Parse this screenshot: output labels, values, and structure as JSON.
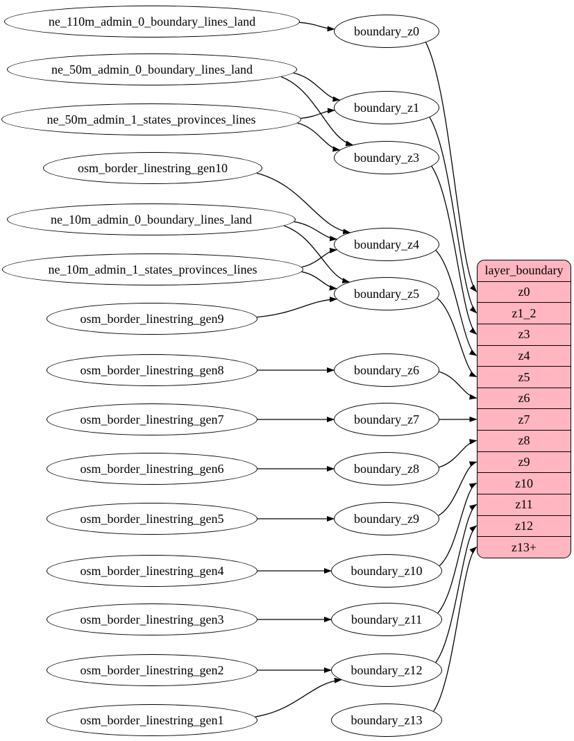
{
  "colors": {
    "background": "#ffffff",
    "node_fill": "#ffffff",
    "stroke": "#000000",
    "table_fill": "#ffb6c1"
  },
  "sources": [
    "ne_110m_admin_0_boundary_lines_land",
    "ne_50m_admin_0_boundary_lines_land",
    "ne_50m_admin_1_states_provinces_lines",
    "osm_border_linestring_gen10",
    "ne_10m_admin_0_boundary_lines_land",
    "ne_10m_admin_1_states_provinces_lines",
    "osm_border_linestring_gen9",
    "osm_border_linestring_gen8",
    "osm_border_linestring_gen7",
    "osm_border_linestring_gen6",
    "osm_border_linestring_gen5",
    "osm_border_linestring_gen4",
    "osm_border_linestring_gen3",
    "osm_border_linestring_gen2",
    "osm_border_linestring_gen1"
  ],
  "stages": [
    "boundary_z0",
    "boundary_z1",
    "boundary_z3",
    "boundary_z4",
    "boundary_z5",
    "boundary_z6",
    "boundary_z7",
    "boundary_z8",
    "boundary_z9",
    "boundary_z10",
    "boundary_z11",
    "boundary_z12",
    "boundary_z13"
  ],
  "table": {
    "title": "layer_boundary",
    "rows": [
      "z0",
      "z1_2",
      "z3",
      "z4",
      "z5",
      "z6",
      "z7",
      "z8",
      "z9",
      "z10",
      "z11",
      "z12",
      "z13+"
    ]
  },
  "edges": [
    [
      "ne_110m_admin_0_boundary_lines_land",
      "boundary_z0"
    ],
    [
      "ne_50m_admin_0_boundary_lines_land",
      "boundary_z1"
    ],
    [
      "ne_50m_admin_0_boundary_lines_land",
      "boundary_z3"
    ],
    [
      "ne_50m_admin_1_states_provinces_lines",
      "boundary_z1"
    ],
    [
      "ne_50m_admin_1_states_provinces_lines",
      "boundary_z3"
    ],
    [
      "osm_border_linestring_gen10",
      "boundary_z4"
    ],
    [
      "ne_10m_admin_0_boundary_lines_land",
      "boundary_z4"
    ],
    [
      "ne_10m_admin_0_boundary_lines_land",
      "boundary_z5"
    ],
    [
      "ne_10m_admin_1_states_provinces_lines",
      "boundary_z4"
    ],
    [
      "ne_10m_admin_1_states_provinces_lines",
      "boundary_z5"
    ],
    [
      "osm_border_linestring_gen9",
      "boundary_z5"
    ],
    [
      "osm_border_linestring_gen8",
      "boundary_z6"
    ],
    [
      "osm_border_linestring_gen7",
      "boundary_z7"
    ],
    [
      "osm_border_linestring_gen6",
      "boundary_z8"
    ],
    [
      "osm_border_linestring_gen5",
      "boundary_z9"
    ],
    [
      "osm_border_linestring_gen4",
      "boundary_z10"
    ],
    [
      "osm_border_linestring_gen3",
      "boundary_z11"
    ],
    [
      "osm_border_linestring_gen2",
      "boundary_z12"
    ],
    [
      "osm_border_linestring_gen1",
      "boundary_z12"
    ],
    [
      "boundary_z0",
      "z0"
    ],
    [
      "boundary_z1",
      "z1_2"
    ],
    [
      "boundary_z3",
      "z3"
    ],
    [
      "boundary_z4",
      "z4"
    ],
    [
      "boundary_z5",
      "z5"
    ],
    [
      "boundary_z6",
      "z6"
    ],
    [
      "boundary_z7",
      "z7"
    ],
    [
      "boundary_z8",
      "z8"
    ],
    [
      "boundary_z9",
      "z9"
    ],
    [
      "boundary_z10",
      "z10"
    ],
    [
      "boundary_z11",
      "z11"
    ],
    [
      "boundary_z12",
      "z12"
    ],
    [
      "boundary_z13",
      "z13+"
    ]
  ]
}
